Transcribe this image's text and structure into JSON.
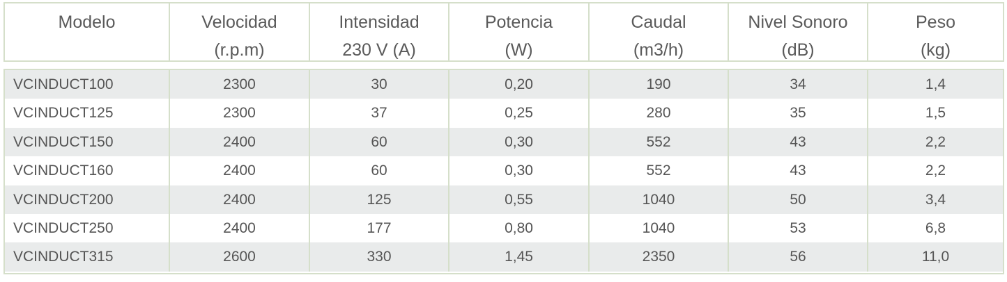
{
  "table": {
    "headers": [
      {
        "line1": "Modelo",
        "line2": ""
      },
      {
        "line1": "Velocidad",
        "line2": "(r.p.m)"
      },
      {
        "line1": "Intensidad",
        "line2": "230 V (A)"
      },
      {
        "line1": "Potencia",
        "line2": "(W)"
      },
      {
        "line1": "Caudal",
        "line2": "(m3/h)"
      },
      {
        "line1": "Nivel Sonoro",
        "line2": "(dB)"
      },
      {
        "line1": "Peso",
        "line2": "(kg)"
      }
    ],
    "rows": [
      [
        "VCINDUCT100",
        "2300",
        "30",
        "0,20",
        "190",
        "34",
        "1,4"
      ],
      [
        "VCINDUCT125",
        "2300",
        "37",
        "0,25",
        "280",
        "35",
        "1,5"
      ],
      [
        "VCINDUCT150",
        "2400",
        "60",
        "0,30",
        "552",
        "43",
        "2,2"
      ],
      [
        "VCINDUCT160",
        "2400",
        "60",
        "0,30",
        "552",
        "43",
        "2,2"
      ],
      [
        "VCINDUCT200",
        "2400",
        "125",
        "0,55",
        "1040",
        "50",
        "3,4"
      ],
      [
        "VCINDUCT250",
        "2400",
        "177",
        "0,80",
        "1040",
        "53",
        "6,8"
      ],
      [
        "VCINDUCT315",
        "2600",
        "330",
        "1,45",
        "2350",
        "56",
        "11,0"
      ]
    ]
  },
  "colors": {
    "border": "#d5dfca",
    "row_shade": "#e9ebeb",
    "text": "#555555"
  }
}
